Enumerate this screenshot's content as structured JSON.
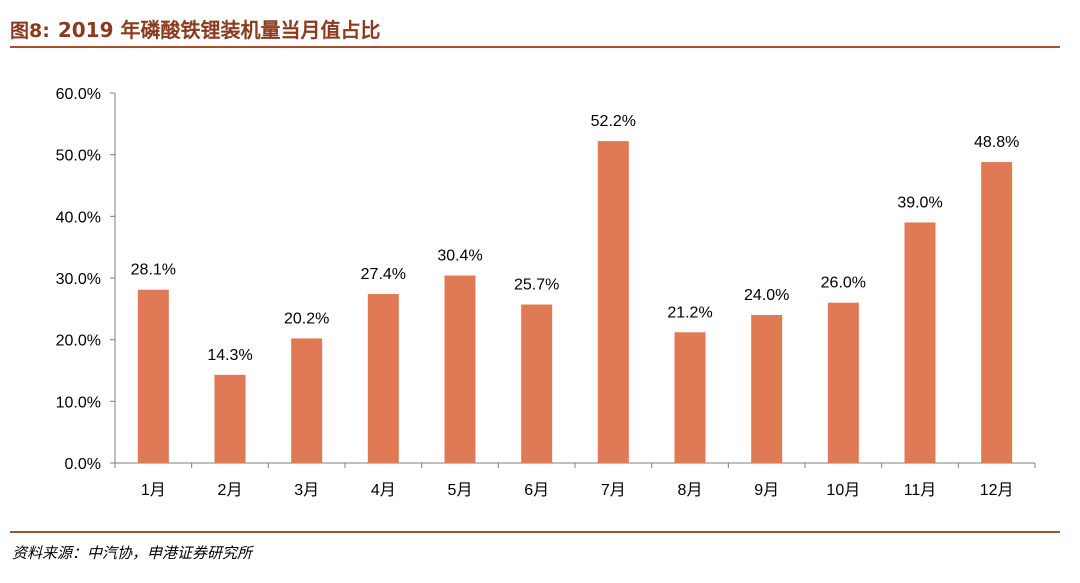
{
  "header": {
    "figure_label": "图8:",
    "title": "2019 年磷酸铁锂装机量当月值占比"
  },
  "source": "资料来源：中汽协，申港证券研究所",
  "colors": {
    "bar": "#E07A55",
    "accent": "#A0522D",
    "title": "#8B3A1E"
  },
  "chart_data": {
    "type": "bar",
    "title": "",
    "xlabel": "",
    "ylabel": "",
    "categories": [
      "1月",
      "2月",
      "3月",
      "4月",
      "5月",
      "6月",
      "7月",
      "8月",
      "9月",
      "10月",
      "11月",
      "12月"
    ],
    "values": [
      28.1,
      14.3,
      20.2,
      27.4,
      30.4,
      25.7,
      52.2,
      21.2,
      24.0,
      26.0,
      39.0,
      48.8
    ],
    "data_labels": [
      "28.1%",
      "14.3%",
      "20.2%",
      "27.4%",
      "30.4%",
      "25.7%",
      "52.2%",
      "21.2%",
      "24.0%",
      "26.0%",
      "39.0%",
      "48.8%"
    ],
    "ylim": [
      0,
      60
    ],
    "yticks": [
      0,
      10,
      20,
      30,
      40,
      50,
      60
    ],
    "ytick_labels": [
      "0.0%",
      "10.0%",
      "20.0%",
      "30.0%",
      "40.0%",
      "50.0%",
      "60.0%"
    ],
    "grid": false,
    "legend": "none"
  }
}
